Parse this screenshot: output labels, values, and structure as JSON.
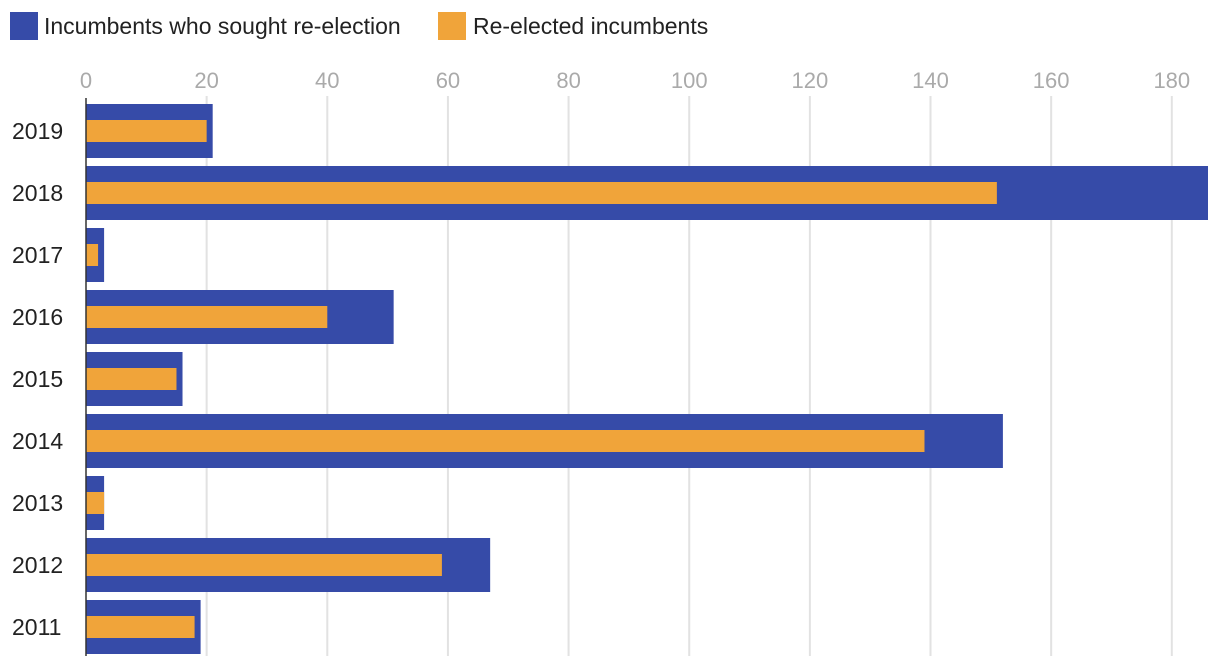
{
  "chart_data": {
    "type": "bar",
    "orientation": "horizontal",
    "categories": [
      "2019",
      "2018",
      "2017",
      "2016",
      "2015",
      "2014",
      "2013",
      "2012",
      "2011"
    ],
    "series": [
      {
        "name": "Incumbents who sought re-election",
        "color": "#364ba8",
        "values": [
          21,
          186,
          3,
          51,
          16,
          152,
          3,
          67,
          19
        ]
      },
      {
        "name": "Re-elected incumbents",
        "color": "#f0a43a",
        "values": [
          20,
          151,
          2,
          40,
          15,
          139,
          3,
          59,
          18
        ]
      }
    ],
    "xticks": [
      0,
      20,
      40,
      60,
      80,
      100,
      120,
      140,
      160,
      180
    ],
    "xlim": [
      0,
      186
    ],
    "grid": true,
    "legend_position": "top-left",
    "xaxis_position": "top"
  }
}
